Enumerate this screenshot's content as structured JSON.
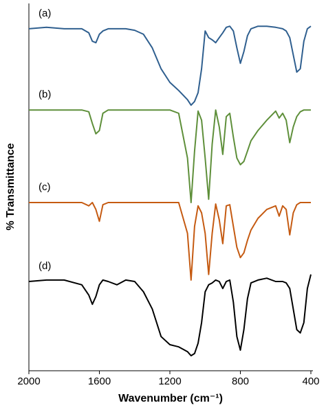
{
  "chart_data": {
    "type": "line",
    "x_label": "Wavenumber (cm⁻¹)",
    "y_label": "% Transmittance",
    "xlim": [
      2000,
      400
    ],
    "xticks": [
      2000,
      1600,
      1200,
      800,
      400
    ],
    "ylim": [
      0,
      100
    ],
    "x": [
      2000,
      1900,
      1800,
      1700,
      1660,
      1640,
      1620,
      1600,
      1580,
      1550,
      1500,
      1450,
      1400,
      1350,
      1300,
      1250,
      1200,
      1150,
      1100,
      1080,
      1060,
      1040,
      1020,
      1000,
      980,
      960,
      940,
      920,
      900,
      880,
      860,
      840,
      820,
      800,
      780,
      760,
      740,
      700,
      650,
      600,
      580,
      560,
      540,
      520,
      500,
      480,
      460,
      440,
      420,
      400
    ],
    "series": [
      {
        "name": "(a)",
        "color": "#2f5f8f",
        "values": [
          93.1,
          93.5,
          93.1,
          93.1,
          92.0,
          89.7,
          89.3,
          91.6,
          92.5,
          93.1,
          93.1,
          93.1,
          92.7,
          91.6,
          87.9,
          82.2,
          78.5,
          76.3,
          73.8,
          72.3,
          73.3,
          75.7,
          82.2,
          92.5,
          90.7,
          90.1,
          89.3,
          90.7,
          92.0,
          93.5,
          93.8,
          92.5,
          87.9,
          83.7,
          86.9,
          91.2,
          93.1,
          93.8,
          93.8,
          93.5,
          93.3,
          93.1,
          92.5,
          90.7,
          86.0,
          81.3,
          82.2,
          89.7,
          93.1,
          93.8
        ]
      },
      {
        "name": "(b)",
        "color": "#5e8f3a",
        "values": [
          71.0,
          71.0,
          71.0,
          71.0,
          70.5,
          67.3,
          64.5,
          65.4,
          70.1,
          71.0,
          71.0,
          71.0,
          71.0,
          71.0,
          71.0,
          71.0,
          71.0,
          70.1,
          57.9,
          45.8,
          59.8,
          70.7,
          68.2,
          57.9,
          46.7,
          61.7,
          71.0,
          66.4,
          58.9,
          69.2,
          70.1,
          63.6,
          57.9,
          56.1,
          57.0,
          59.8,
          62.6,
          65.4,
          68.2,
          70.7,
          68.8,
          70.1,
          68.2,
          62.1,
          66.4,
          69.2,
          70.5,
          71.0,
          71.0,
          71.0
        ]
      },
      {
        "name": "(c)",
        "color": "#c55a11",
        "values": [
          45.8,
          45.8,
          45.8,
          45.8,
          44.9,
          45.8,
          43.9,
          40.7,
          45.2,
          45.8,
          45.8,
          45.8,
          45.8,
          45.8,
          45.8,
          45.8,
          45.8,
          45.8,
          37.4,
          24.7,
          39.3,
          44.9,
          43.0,
          37.4,
          26.2,
          37.4,
          45.4,
          41.1,
          34.6,
          44.9,
          45.2,
          39.3,
          33.6,
          30.8,
          32.1,
          35.5,
          38.3,
          41.5,
          43.9,
          44.9,
          42.1,
          44.9,
          43.9,
          37.0,
          43.0,
          45.2,
          45.8,
          45.8,
          45.8,
          45.8
        ]
      },
      {
        "name": "(d)",
        "color": "#000000",
        "values": [
          24.3,
          24.7,
          24.7,
          23.4,
          20.6,
          18.1,
          20.2,
          23.4,
          24.7,
          24.3,
          23.4,
          24.7,
          24.3,
          21.5,
          16.8,
          9.3,
          7.1,
          6.5,
          5.2,
          4.1,
          4.7,
          7.5,
          13.1,
          21.5,
          23.4,
          23.9,
          24.7,
          24.3,
          22.4,
          24.3,
          24.7,
          18.7,
          9.3,
          5.6,
          11.2,
          19.6,
          23.9,
          24.7,
          25.2,
          24.3,
          24.3,
          24.3,
          23.9,
          22.4,
          16.8,
          11.2,
          10.3,
          13.1,
          22.4,
          26.2
        ]
      }
    ]
  }
}
